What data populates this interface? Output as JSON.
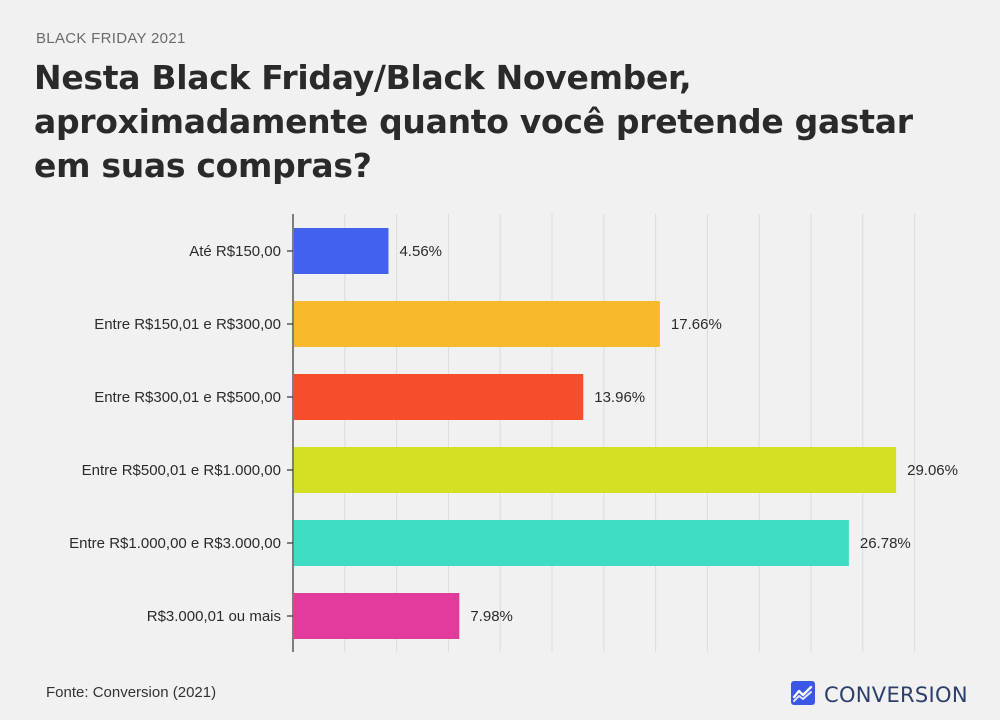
{
  "header": {
    "kicker": "BLACK FRIDAY 2021",
    "title": "Nesta Black Friday/Black November, aproximadamente quanto você pretende gastar em suas compras?"
  },
  "footer": {
    "source": "Fonte: Conversion (2021)",
    "brand": "CONVERSION",
    "brand_icon": "chart-trend-icon",
    "brand_color": "#3a57e8"
  },
  "chart_data": {
    "type": "bar",
    "orientation": "horizontal",
    "categories": [
      "Até R$150,00",
      "Entre R$150,01 e R$300,00",
      "Entre R$300,01 e R$500,00",
      "Entre R$500,01 e R$1.000,00",
      "Entre R$1.000,00 e R$3.000,00",
      "R$3.000,01 ou mais"
    ],
    "values": [
      4.56,
      17.66,
      13.96,
      29.06,
      26.78,
      7.98
    ],
    "value_labels": [
      "4.56%",
      "17.66%",
      "13.96%",
      "29.06%",
      "26.78%",
      "7.98%"
    ],
    "colors": [
      "#4262ee",
      "#f6ba2c",
      "#f64e2b",
      "#d4e024",
      "#3ddcc3",
      "#e33b9c"
    ],
    "xlim": [
      0,
      30
    ],
    "grid": true
  }
}
